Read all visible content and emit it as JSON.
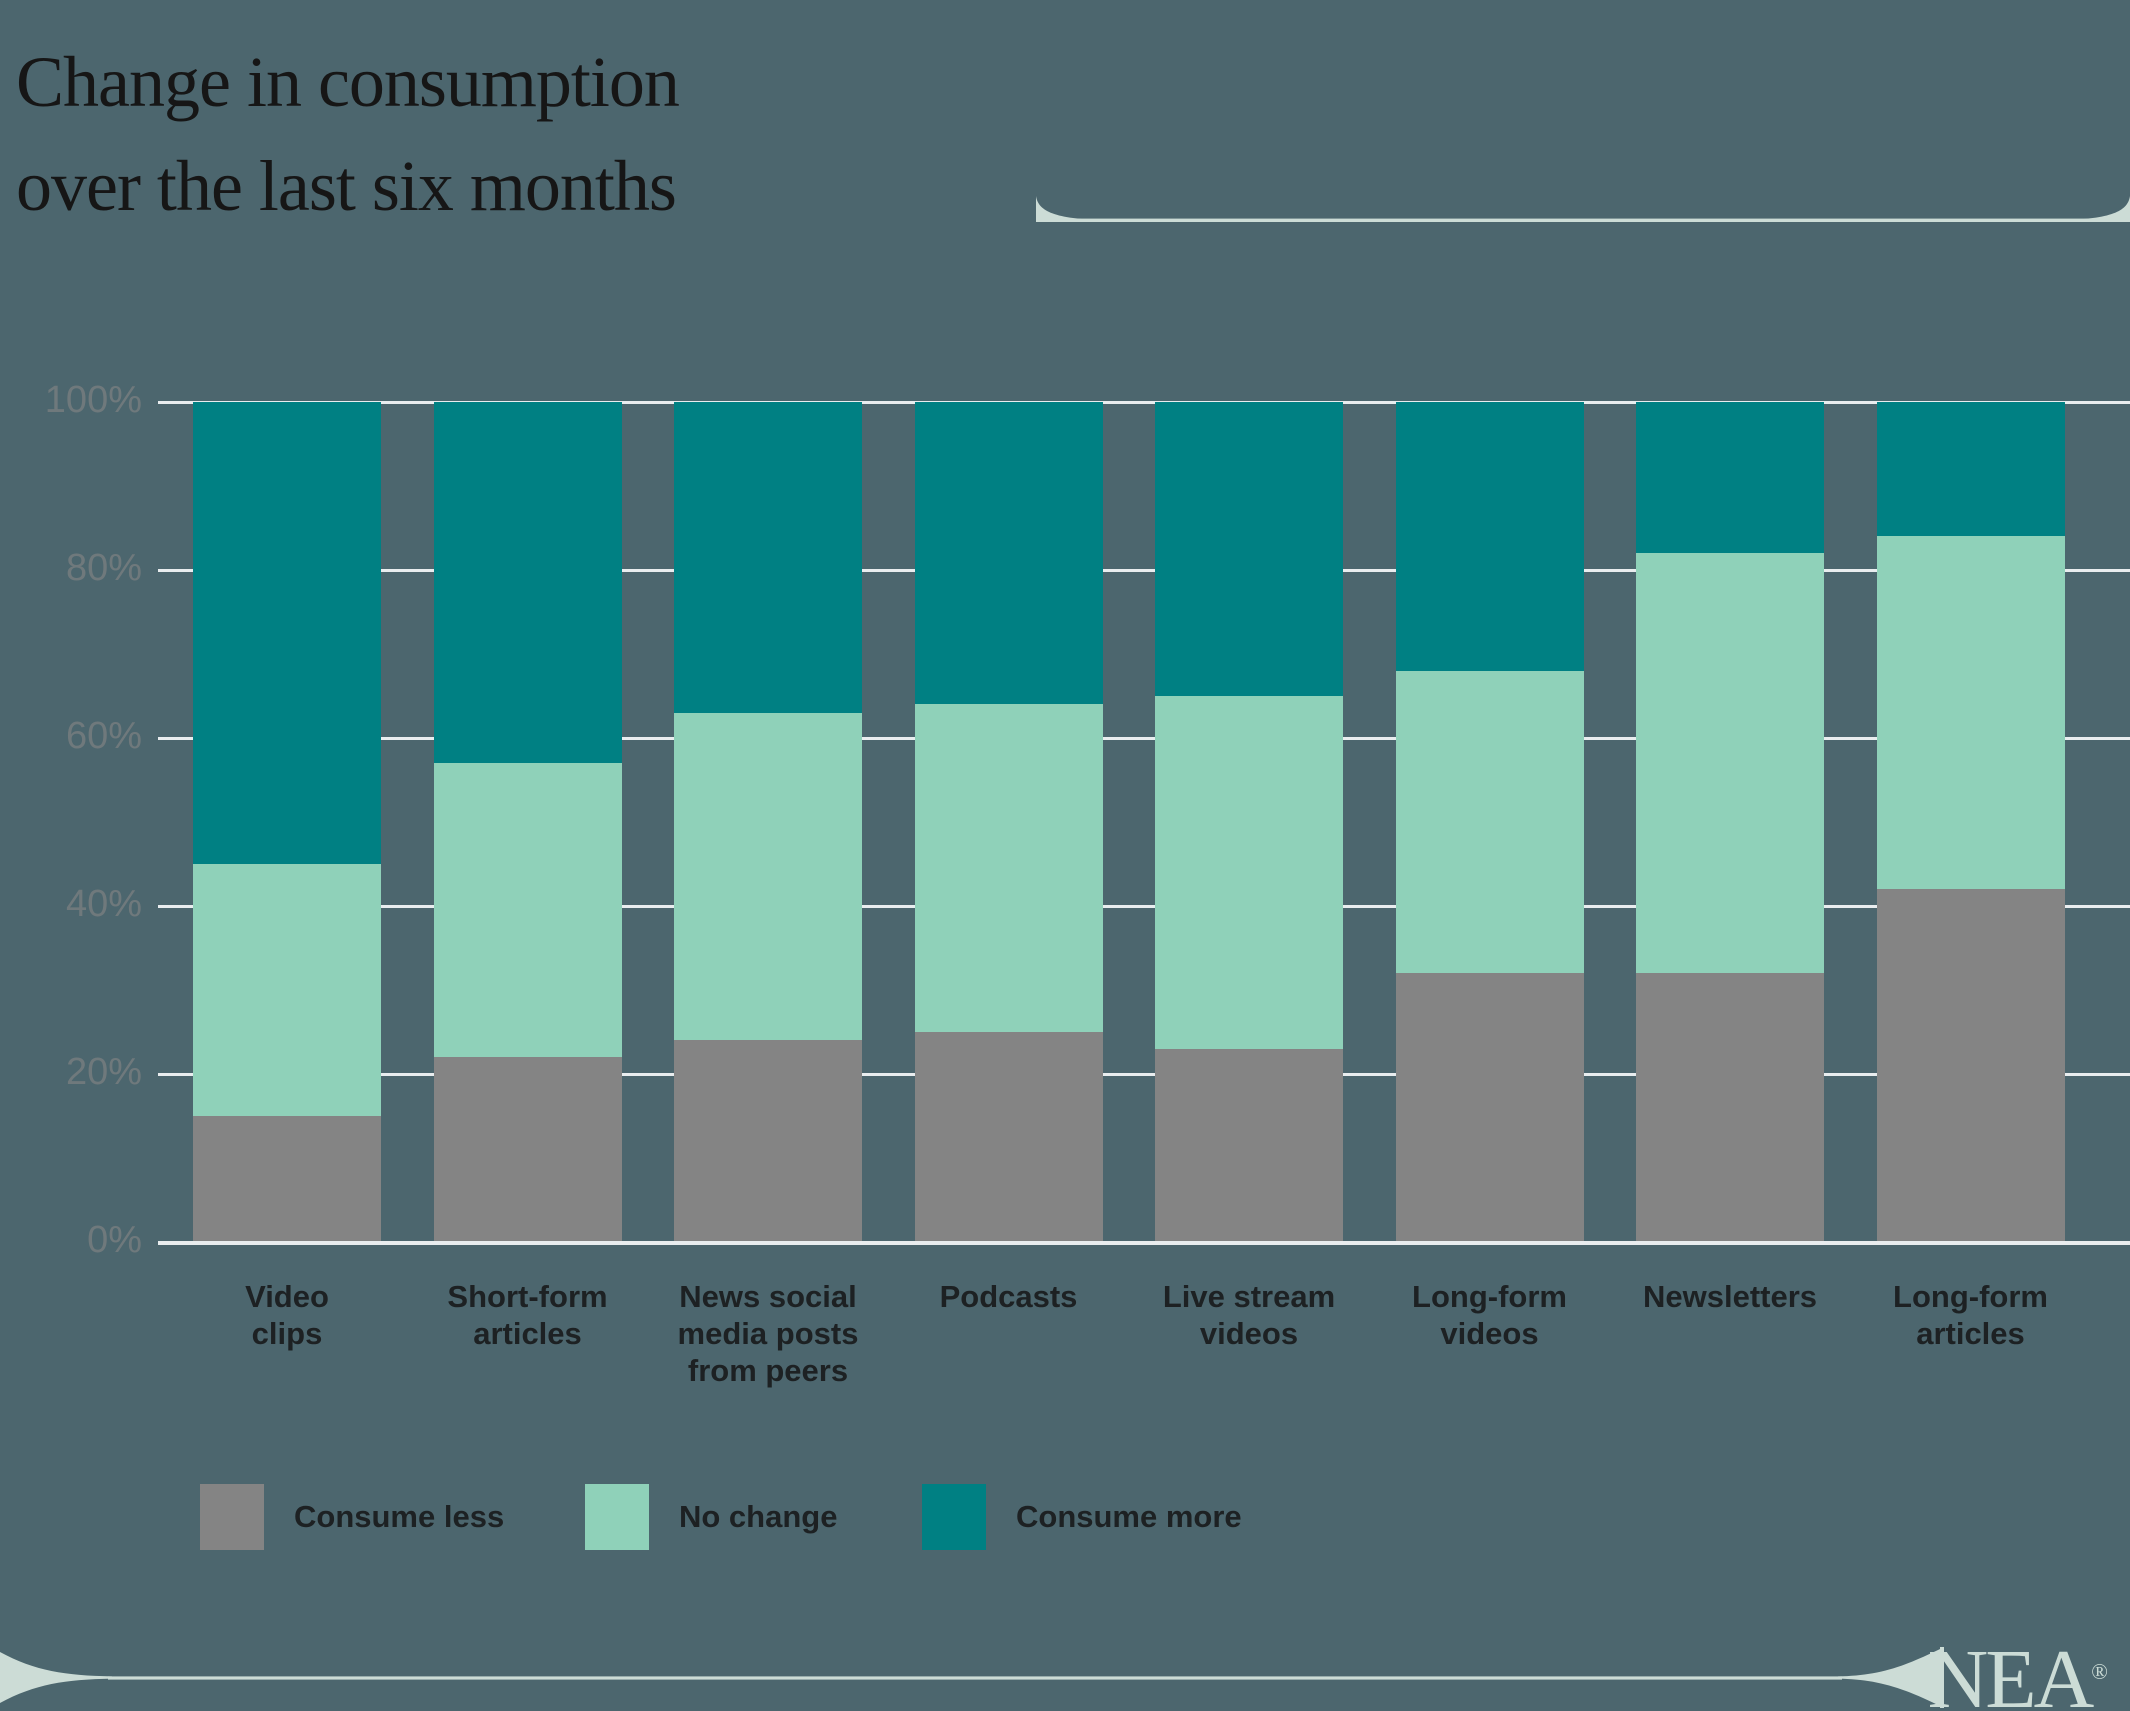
{
  "title": {
    "text": "Change in consumption\nover the last six months"
  },
  "colors": {
    "background": "#4c666e",
    "consume_less": "#848484",
    "no_change": "#8fd1b9",
    "consume_more": "#008083",
    "gridline": "#e9edef",
    "axis_tick_label": "#6f797c",
    "title_text": "#161616",
    "label_text": "#1d2123",
    "decoration_mint": "#ccdcd6"
  },
  "chart_data": {
    "type": "bar",
    "stacked": true,
    "unit": "percent",
    "title": "Change in consumption over the last six months",
    "categories": [
      [
        "Video",
        "clips"
      ],
      [
        "Short-form",
        "articles"
      ],
      [
        "News social",
        "media posts",
        "from peers"
      ],
      [
        "Podcasts"
      ],
      [
        "Live stream",
        "videos"
      ],
      [
        "Long-form",
        "videos"
      ],
      [
        "Newsletters"
      ],
      [
        "Long-form",
        "articles"
      ]
    ],
    "series": [
      {
        "name": "Consume less",
        "color_key": "consume_less",
        "values": [
          15,
          22,
          24,
          25,
          23,
          32,
          32,
          42
        ]
      },
      {
        "name": "No change",
        "color_key": "no_change",
        "values": [
          30,
          35,
          39,
          39,
          42,
          36,
          50,
          42
        ]
      },
      {
        "name": "Consume more",
        "color_key": "consume_more",
        "values": [
          55,
          43,
          37,
          36,
          35,
          32,
          18,
          16
        ]
      }
    ],
    "ylim": [
      0,
      100
    ],
    "yticks": [
      "0%",
      "20%",
      "40%",
      "60%",
      "80%",
      "100%"
    ],
    "grid": true,
    "legend_position": "bottom"
  },
  "footer": {
    "logo_text": "NEA",
    "registered_mark": "®"
  }
}
